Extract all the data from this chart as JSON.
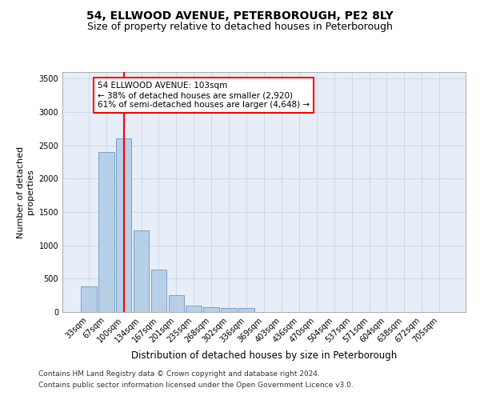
{
  "title1": "54, ELLWOOD AVENUE, PETERBOROUGH, PE2 8LY",
  "title2": "Size of property relative to detached houses in Peterborough",
  "xlabel": "Distribution of detached houses by size in Peterborough",
  "ylabel": "Number of detached\nproperties",
  "footnote1": "Contains HM Land Registry data © Crown copyright and database right 2024.",
  "footnote2": "Contains public sector information licensed under the Open Government Licence v3.0.",
  "categories": [
    "33sqm",
    "67sqm",
    "100sqm",
    "134sqm",
    "167sqm",
    "201sqm",
    "235sqm",
    "268sqm",
    "302sqm",
    "336sqm",
    "369sqm",
    "403sqm",
    "436sqm",
    "470sqm",
    "504sqm",
    "537sqm",
    "571sqm",
    "604sqm",
    "638sqm",
    "672sqm",
    "705sqm"
  ],
  "values": [
    390,
    2400,
    2610,
    1230,
    640,
    250,
    100,
    70,
    65,
    55,
    0,
    0,
    0,
    0,
    0,
    0,
    0,
    0,
    0,
    0,
    0
  ],
  "bar_color": "#b8cfe8",
  "bar_edge_color": "#6898c8",
  "vline_color": "red",
  "vline_pos": 2.5,
  "annotation_text": "54 ELLWOOD AVENUE: 103sqm\n← 38% of detached houses are smaller (2,920)\n61% of semi-detached houses are larger (4,648) →",
  "annotation_box_color": "white",
  "annotation_box_edge": "red",
  "ylim": [
    0,
    3600
  ],
  "yticks": [
    0,
    500,
    1000,
    1500,
    2000,
    2500,
    3000,
    3500
  ],
  "grid_color": "#ccd8ec",
  "bg_color": "#e8eef8",
  "title1_fontsize": 10,
  "title2_fontsize": 9,
  "xlabel_fontsize": 8.5,
  "ylabel_fontsize": 8,
  "tick_fontsize": 7,
  "footnote_fontsize": 6.5,
  "annot_fontsize": 7.5
}
